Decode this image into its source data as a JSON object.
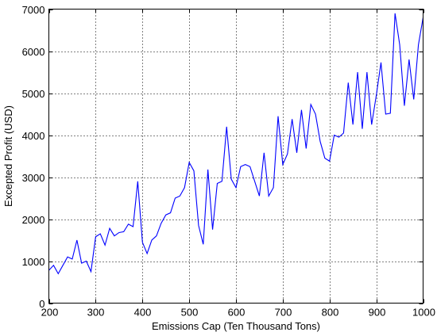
{
  "chart_data": {
    "type": "line",
    "title": "",
    "xlabel": "Emissions Cap (Ten Thousand Tons)",
    "ylabel": "Excepted Profit (USD)",
    "xlim": [
      200,
      1000
    ],
    "ylim": [
      0,
      7000
    ],
    "xticks": [
      200,
      300,
      400,
      500,
      600,
      700,
      800,
      900,
      1000
    ],
    "yticks": [
      0,
      1000,
      2000,
      3000,
      4000,
      5000,
      6000,
      7000
    ],
    "grid": true,
    "line_color": "#0000ff",
    "series": [
      {
        "x": [
          200,
          210,
          220,
          230,
          240,
          250,
          260,
          270,
          280,
          290,
          300,
          310,
          320,
          330,
          340,
          350,
          360,
          370,
          380,
          390,
          400,
          410,
          420,
          430,
          440,
          450,
          460,
          470,
          480,
          490,
          500,
          510,
          520,
          530,
          540,
          550,
          560,
          570,
          580,
          590,
          600,
          610,
          620,
          630,
          640,
          650,
          660,
          670,
          680,
          690,
          700,
          710,
          720,
          730,
          740,
          750,
          760,
          770,
          780,
          790,
          800,
          810,
          820,
          830,
          840,
          850,
          860,
          870,
          880,
          890,
          900,
          910,
          920,
          930,
          940,
          950,
          960,
          970,
          980,
          990,
          1000
        ],
        "y": [
          780,
          900,
          700,
          900,
          1100,
          1050,
          1500,
          950,
          1000,
          750,
          1580,
          1650,
          1380,
          1780,
          1600,
          1680,
          1700,
          1880,
          1820,
          2900,
          1450,
          1180,
          1500,
          1600,
          1900,
          2100,
          2150,
          2500,
          2550,
          2750,
          3350,
          3150,
          1850,
          1400,
          3180,
          1750,
          2850,
          2900,
          4200,
          2950,
          2750,
          3250,
          3300,
          3250,
          2900,
          2550,
          3580,
          2550,
          2750,
          4450,
          3300,
          3550,
          4380,
          3580,
          4600,
          3680,
          4730,
          4500,
          3850,
          3450,
          3380,
          4000,
          3950,
          4050,
          5250,
          4250,
          5500,
          4150,
          5500,
          4250,
          4950,
          5730,
          4500,
          4520,
          6900,
          6150,
          4700,
          5800,
          4850,
          6150,
          6800
        ]
      }
    ]
  }
}
